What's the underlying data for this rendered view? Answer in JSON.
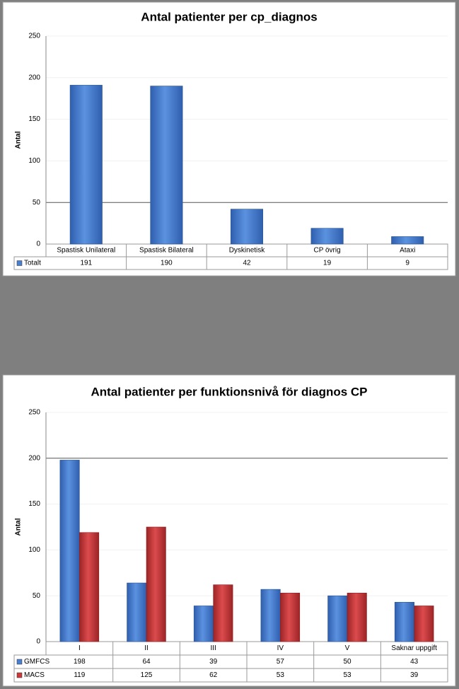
{
  "chart_data": [
    {
      "type": "bar",
      "title": "Antal patienter per cp_diagnos",
      "y_label": "Antal",
      "categories": [
        "Spastisk Unilateral",
        "Spastisk Bilateral",
        "Dyskinetisk",
        "CP övrig",
        "Ataxi"
      ],
      "series": [
        {
          "name": "Totalt",
          "color": "#4a7fd0",
          "values": [
            191,
            190,
            42,
            19,
            9
          ]
        }
      ],
      "ylim": [
        0,
        250
      ],
      "yticks": [
        0,
        50,
        100,
        150,
        200,
        250
      ],
      "grid": true
    },
    {
      "type": "bar",
      "title": "Antal patienter per funktionsnivå för diagnos CP",
      "y_label": "Antal",
      "categories": [
        "I",
        "II",
        "III",
        "IV",
        "V",
        "Saknar uppgift"
      ],
      "series": [
        {
          "name": "GMFCS",
          "color": "#4a7fd0",
          "values": [
            198,
            64,
            39,
            57,
            50,
            43
          ]
        },
        {
          "name": "MACS",
          "color": "#c8393b",
          "values": [
            119,
            125,
            62,
            53,
            53,
            39
          ]
        }
      ],
      "ylim": [
        0,
        250
      ],
      "yticks": [
        0,
        50,
        100,
        150,
        200,
        250
      ],
      "grid": true
    }
  ]
}
